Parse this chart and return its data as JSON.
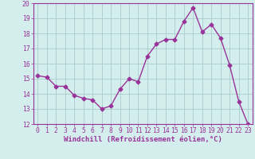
{
  "x": [
    0,
    1,
    2,
    3,
    4,
    5,
    6,
    7,
    8,
    9,
    10,
    11,
    12,
    13,
    14,
    15,
    16,
    17,
    18,
    19,
    20,
    21,
    22,
    23
  ],
  "y": [
    15.2,
    15.1,
    14.5,
    14.5,
    13.9,
    13.7,
    13.6,
    13.0,
    13.2,
    14.3,
    15.0,
    14.8,
    16.5,
    17.3,
    17.6,
    17.6,
    18.8,
    19.7,
    18.1,
    18.6,
    17.7,
    15.9,
    13.5,
    12.0
  ],
  "line_color": "#993399",
  "marker": "D",
  "marker_size": 2.5,
  "linewidth": 1.0,
  "bg_color": "#d4eeed",
  "grid_color": "#aacccc",
  "xlabel": "Windchill (Refroidissement éolien,°C)",
  "xlabel_color": "#993399",
  "xlabel_fontsize": 6.5,
  "tick_fontsize": 5.8,
  "ylim": [
    12,
    20
  ],
  "xlim_min": -0.5,
  "xlim_max": 23.5,
  "yticks": [
    12,
    13,
    14,
    15,
    16,
    17,
    18,
    19,
    20
  ],
  "xticks": [
    0,
    1,
    2,
    3,
    4,
    5,
    6,
    7,
    8,
    9,
    10,
    11,
    12,
    13,
    14,
    15,
    16,
    17,
    18,
    19,
    20,
    21,
    22,
    23
  ],
  "spine_color": "#993399",
  "tick_color": "#993399"
}
